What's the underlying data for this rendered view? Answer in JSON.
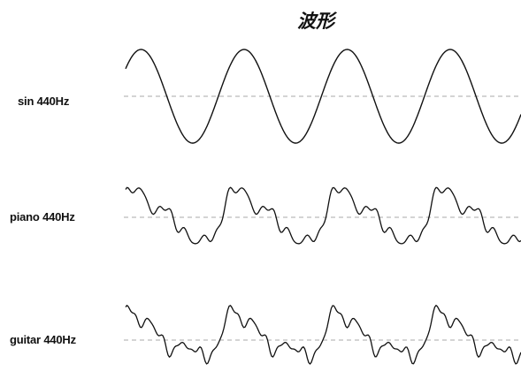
{
  "title": "波形",
  "colors": {
    "waveform": "#111111",
    "baseline": "#aaaaaa",
    "background": "#ffffff"
  },
  "rows": [
    {
      "label": "sin 440Hz",
      "waveform": "sine"
    },
    {
      "label": "piano 440Hz",
      "waveform": "piano"
    },
    {
      "label": "guitar 440Hz",
      "waveform": "guitar"
    }
  ]
}
